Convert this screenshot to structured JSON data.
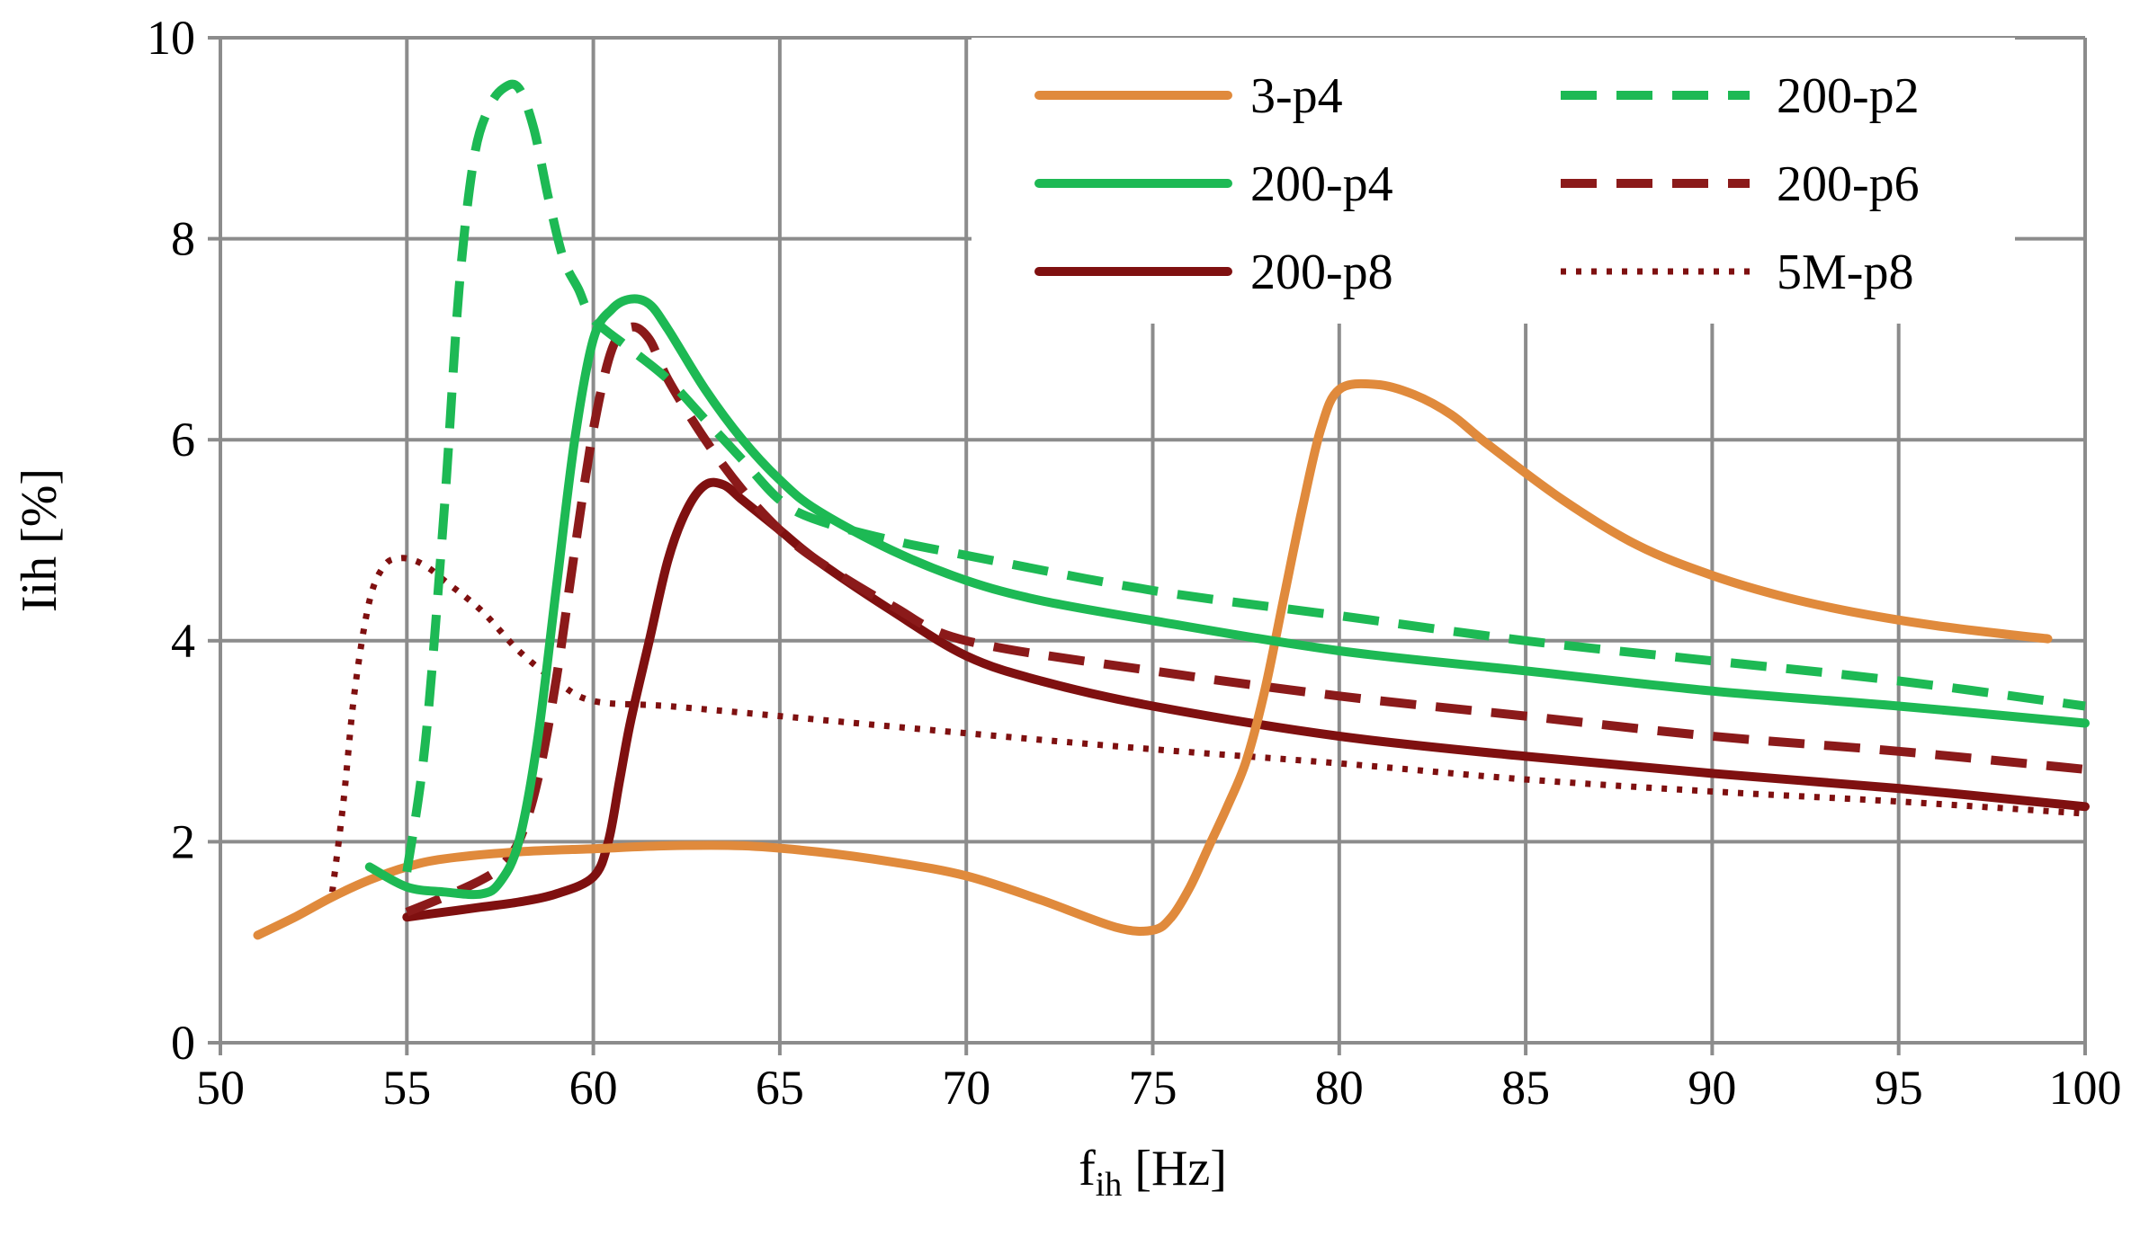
{
  "chart_data": {
    "type": "line",
    "title": "",
    "xlabel": "f",
    "xlabel_sub": "ih",
    "xlabel_unit": " [Hz]",
    "ylabel": "Iih  [%]",
    "xlim": [
      50,
      100
    ],
    "ylim": [
      0,
      10
    ],
    "xticks": [
      50,
      55,
      60,
      65,
      70,
      75,
      80,
      85,
      90,
      95,
      100
    ],
    "yticks": [
      0,
      2,
      4,
      6,
      8,
      10
    ],
    "grid": true,
    "legend_position": "top-right",
    "series": [
      {
        "name": "3-p4",
        "color": "#E08A3C",
        "style": "solid",
        "x": [
          51,
          52,
          53,
          54,
          55,
          56,
          58,
          60,
          62,
          64,
          66,
          68,
          70,
          72,
          74,
          75,
          75.5,
          76,
          76.5,
          77,
          77.5,
          78,
          78.5,
          79,
          79.5,
          80,
          81,
          82,
          83,
          84,
          86,
          88,
          90,
          92,
          94,
          96,
          98,
          99
        ],
        "y": [
          1.07,
          1.25,
          1.45,
          1.62,
          1.75,
          1.83,
          1.9,
          1.93,
          1.96,
          1.96,
          1.9,
          1.8,
          1.66,
          1.42,
          1.15,
          1.12,
          1.25,
          1.55,
          1.95,
          2.35,
          2.8,
          3.5,
          4.4,
          5.3,
          6.1,
          6.5,
          6.55,
          6.45,
          6.25,
          5.95,
          5.4,
          4.95,
          4.65,
          4.43,
          4.27,
          4.15,
          4.06,
          4.02
        ]
      },
      {
        "name": "200-p2",
        "color": "#1DB954",
        "style": "dashed",
        "x": [
          55,
          55.5,
          56,
          56.4,
          56.8,
          57.2,
          57.6,
          58.0,
          58.4,
          58.8,
          59.2,
          59.6,
          60,
          61,
          62,
          63,
          64,
          65,
          66,
          68,
          70,
          75,
          80,
          85,
          90,
          95,
          100
        ],
        "y": [
          1.7,
          3.0,
          5.3,
          7.5,
          8.8,
          9.3,
          9.5,
          9.5,
          9.1,
          8.4,
          7.8,
          7.5,
          7.2,
          6.9,
          6.6,
          6.2,
          5.8,
          5.4,
          5.2,
          5.0,
          4.85,
          4.5,
          4.25,
          4.0,
          3.8,
          3.6,
          3.35
        ]
      },
      {
        "name": "200-p4",
        "color": "#1DB954",
        "style": "solid",
        "x": [
          54,
          55,
          56,
          57,
          57.5,
          58,
          58.5,
          59,
          59.5,
          60,
          60.5,
          61,
          61.5,
          62,
          63,
          64,
          65,
          66,
          68,
          70,
          72,
          75,
          80,
          85,
          90,
          95,
          100
        ],
        "y": [
          1.75,
          1.55,
          1.5,
          1.48,
          1.6,
          2.0,
          3.0,
          4.5,
          6.0,
          7.0,
          7.3,
          7.4,
          7.35,
          7.1,
          6.5,
          6.0,
          5.6,
          5.3,
          4.9,
          4.6,
          4.4,
          4.2,
          3.9,
          3.7,
          3.5,
          3.35,
          3.18
        ]
      },
      {
        "name": "200-p6",
        "color": "#8B1A1A",
        "style": "dashed",
        "x": [
          55,
          56,
          57,
          57.5,
          58,
          58.5,
          59,
          59.5,
          60,
          60.5,
          61,
          61.5,
          62,
          63,
          64,
          65,
          66,
          68,
          70,
          75,
          80,
          85,
          90,
          95,
          100
        ],
        "y": [
          1.3,
          1.45,
          1.62,
          1.75,
          2.0,
          2.6,
          3.6,
          4.9,
          6.1,
          6.9,
          7.12,
          7.0,
          6.6,
          6.0,
          5.5,
          5.1,
          4.8,
          4.35,
          4.0,
          3.7,
          3.45,
          3.25,
          3.05,
          2.9,
          2.72
        ]
      },
      {
        "name": "200-p8",
        "color": "#7F1010",
        "style": "solid",
        "x": [
          55,
          56,
          57,
          58,
          59,
          60,
          60.4,
          60.7,
          61,
          61.5,
          62,
          62.5,
          63,
          63.5,
          64,
          65,
          66,
          68,
          70,
          72,
          75,
          80,
          85,
          90,
          95,
          100
        ],
        "y": [
          1.25,
          1.3,
          1.35,
          1.4,
          1.48,
          1.65,
          2.0,
          2.6,
          3.2,
          4.0,
          4.8,
          5.3,
          5.55,
          5.55,
          5.4,
          5.1,
          4.8,
          4.3,
          3.85,
          3.6,
          3.35,
          3.05,
          2.85,
          2.68,
          2.53,
          2.35
        ]
      },
      {
        "name": "5M-p8",
        "color": "#7F1010",
        "style": "dotted",
        "x": [
          53,
          53.3,
          53.6,
          54,
          54.4,
          54.8,
          55.2,
          55.6,
          56,
          57,
          58,
          59,
          60,
          62,
          65,
          70,
          75,
          80,
          85,
          90,
          95,
          100
        ],
        "y": [
          1.5,
          2.4,
          3.5,
          4.4,
          4.75,
          4.82,
          4.8,
          4.72,
          4.6,
          4.3,
          3.9,
          3.6,
          3.4,
          3.35,
          3.25,
          3.08,
          2.92,
          2.78,
          2.62,
          2.5,
          2.4,
          2.28
        ]
      }
    ]
  }
}
